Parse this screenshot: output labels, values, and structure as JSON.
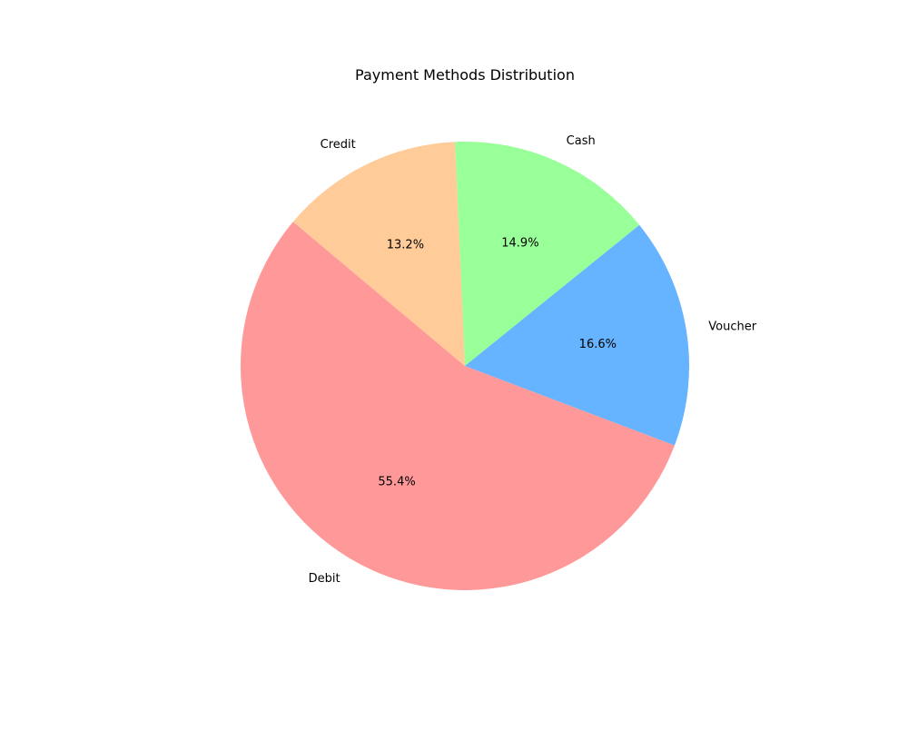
{
  "chart_data": {
    "type": "pie",
    "title": "Payment Methods Distribution",
    "categories": [
      "Debit",
      "Voucher",
      "Cash",
      "Credit"
    ],
    "values": [
      55.4,
      16.6,
      14.9,
      13.2
    ],
    "percent_labels": [
      "55.4%",
      "16.6%",
      "14.9%",
      "13.2%"
    ],
    "colors": [
      "#ff9999",
      "#66b3ff",
      "#99ff99",
      "#ffcc99"
    ],
    "start_angle_deg": 140,
    "direction": "counterclockwise",
    "legend": "none"
  }
}
